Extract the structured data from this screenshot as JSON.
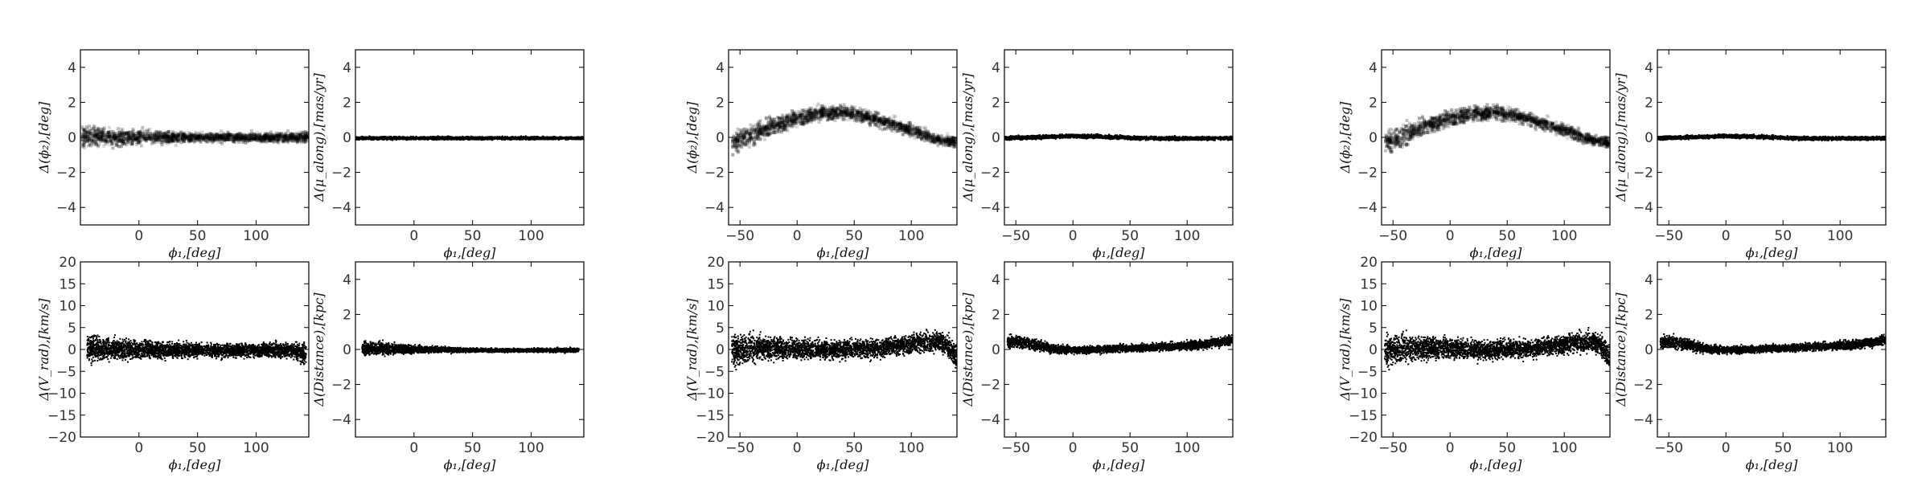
{
  "chart_data": [
    {
      "type": "heatmap",
      "column": 1,
      "row": 1,
      "xlabel": "ϕ₁,[deg]",
      "ylabel": "Δ(ϕ₂),[deg]",
      "xlim": [
        -50,
        145
      ],
      "ylim": [
        -5,
        5
      ],
      "xticks": [
        0,
        50,
        100
      ],
      "yticks": [
        -4,
        -2,
        0,
        2,
        4
      ],
      "band": {
        "x": [
          -50,
          -25,
          0,
          25,
          50,
          75,
          100,
          125,
          145
        ],
        "center": [
          0.1,
          0.0,
          0.0,
          0.0,
          0.0,
          0.0,
          0.0,
          0.0,
          0.0
        ],
        "spread": [
          0.6,
          0.5,
          0.4,
          0.3,
          0.25,
          0.25,
          0.25,
          0.25,
          0.3
        ]
      }
    },
    {
      "type": "scatter",
      "column": 1,
      "row": 1,
      "xlabel": "ϕ₁,[deg]",
      "ylabel": "Δ(μ_along),[mas/yr]",
      "xlim": [
        -50,
        145
      ],
      "ylim": [
        -5,
        5
      ],
      "xticks": [
        0,
        50,
        100
      ],
      "yticks": [
        -4,
        -2,
        0,
        2,
        4
      ],
      "band": {
        "x": [
          -50,
          0,
          50,
          100,
          145
        ],
        "center": [
          0.0,
          0.0,
          0.0,
          0.0,
          0.0
        ],
        "spread": [
          0.08,
          0.08,
          0.08,
          0.08,
          0.08
        ]
      }
    },
    {
      "type": "scatter",
      "column": 1,
      "row": 2,
      "xlabel": "ϕ₁,[deg]",
      "ylabel": "Δ(V_rad),[km/s]",
      "xlim": [
        -50,
        145
      ],
      "ylim": [
        -20,
        20
      ],
      "xticks": [
        0,
        50,
        100
      ],
      "yticks": [
        -20,
        -15,
        -10,
        -5,
        0,
        5,
        10,
        15,
        20
      ],
      "band": {
        "x": [
          -45,
          -25,
          0,
          50,
          100,
          130,
          142
        ],
        "center": [
          0.5,
          0.3,
          0.2,
          0.0,
          0.0,
          0.0,
          -1.0
        ],
        "spread": [
          3.0,
          2.5,
          2.0,
          1.5,
          1.5,
          1.8,
          2.5
        ]
      }
    },
    {
      "type": "scatter",
      "column": 1,
      "row": 2,
      "xlabel": "ϕ₁,[deg]",
      "ylabel": "Δ(Distance),[kpc]",
      "xlim": [
        -50,
        145
      ],
      "ylim": [
        -5,
        5
      ],
      "xticks": [
        0,
        50,
        100
      ],
      "yticks": [
        -4,
        -2,
        0,
        2,
        4
      ],
      "band": {
        "x": [
          -45,
          -25,
          0,
          50,
          100,
          140
        ],
        "center": [
          0.1,
          0.1,
          0.05,
          0.0,
          0.0,
          0.0
        ],
        "spread": [
          0.35,
          0.35,
          0.2,
          0.1,
          0.1,
          0.12
        ]
      }
    },
    {
      "type": "heatmap",
      "column": 2,
      "row": 1,
      "xlabel": "ϕ₁,[deg]",
      "ylabel": "Δ(ϕ₂),[deg]",
      "xlim": [
        -60,
        140
      ],
      "ylim": [
        -5,
        5
      ],
      "xticks": [
        -50,
        0,
        50,
        100
      ],
      "yticks": [
        -4,
        -2,
        0,
        2,
        4
      ],
      "band": {
        "x": [
          -58,
          -40,
          -20,
          0,
          20,
          40,
          60,
          80,
          100,
          120,
          138
        ],
        "center": [
          -0.4,
          0.2,
          0.7,
          1.1,
          1.4,
          1.4,
          1.2,
          0.8,
          0.4,
          -0.1,
          -0.3
        ],
        "spread": [
          0.6,
          0.55,
          0.5,
          0.45,
          0.4,
          0.4,
          0.35,
          0.35,
          0.35,
          0.3,
          0.3
        ]
      }
    },
    {
      "type": "scatter",
      "column": 2,
      "row": 1,
      "xlabel": "ϕ₁,[deg]",
      "ylabel": "Δ(μ_along),[mas/yr]",
      "xlim": [
        -60,
        140
      ],
      "ylim": [
        -5,
        5
      ],
      "xticks": [
        -50,
        0,
        50,
        100
      ],
      "yticks": [
        -4,
        -2,
        0,
        2,
        4
      ],
      "band": {
        "x": [
          -60,
          -20,
          0,
          20,
          60,
          100,
          140
        ],
        "center": [
          0.0,
          0.08,
          0.12,
          0.1,
          0.0,
          -0.02,
          0.0
        ],
        "spread": [
          0.1,
          0.1,
          0.1,
          0.1,
          0.1,
          0.1,
          0.1
        ]
      }
    },
    {
      "type": "scatter",
      "column": 2,
      "row": 2,
      "xlabel": "ϕ₁,[deg]",
      "ylabel": "Δ(V_rad),[km/s]",
      "xlim": [
        -60,
        140
      ],
      "ylim": [
        -20,
        20
      ],
      "xticks": [
        -50,
        0,
        50,
        100
      ],
      "yticks": [
        -20,
        -15,
        -10,
        -5,
        0,
        5,
        10,
        15,
        20
      ],
      "band": {
        "x": [
          -58,
          -40,
          -10,
          30,
          70,
          100,
          125,
          135,
          140
        ],
        "center": [
          0.0,
          0.5,
          0.5,
          0.0,
          0.5,
          1.5,
          2.0,
          0.0,
          -2.5
        ],
        "spread": [
          3.5,
          3.0,
          2.2,
          2.0,
          2.0,
          2.2,
          2.2,
          2.5,
          2.5
        ]
      }
    },
    {
      "type": "scatter",
      "column": 2,
      "row": 2,
      "xlabel": "ϕ₁,[deg]",
      "ylabel": "Δ(Distance),[kpc]",
      "xlim": [
        -60,
        140
      ],
      "ylim": [
        -5,
        5
      ],
      "xticks": [
        -50,
        0,
        50,
        100
      ],
      "yticks": [
        -4,
        -2,
        0,
        2,
        4
      ],
      "band": {
        "x": [
          -58,
          -40,
          -20,
          0,
          40,
          80,
          110,
          130,
          140
        ],
        "center": [
          0.5,
          0.4,
          0.1,
          0.0,
          0.1,
          0.2,
          0.3,
          0.5,
          0.6
        ],
        "spread": [
          0.35,
          0.35,
          0.25,
          0.2,
          0.2,
          0.2,
          0.25,
          0.25,
          0.3
        ]
      }
    },
    {
      "type": "heatmap",
      "column": 3,
      "row": 1,
      "xlabel": "ϕ₁,[deg]",
      "ylabel": "Δ(ϕ₂),[deg]",
      "xlim": [
        -60,
        140
      ],
      "ylim": [
        -5,
        5
      ],
      "xticks": [
        -50,
        0,
        50,
        100
      ],
      "yticks": [
        -4,
        -2,
        0,
        2,
        4
      ],
      "band": {
        "x": [
          -58,
          -40,
          -20,
          0,
          20,
          40,
          60,
          80,
          100,
          120,
          138
        ],
        "center": [
          -0.4,
          0.2,
          0.7,
          1.1,
          1.4,
          1.4,
          1.2,
          0.8,
          0.4,
          -0.1,
          -0.3
        ],
        "spread": [
          0.6,
          0.55,
          0.5,
          0.45,
          0.4,
          0.4,
          0.35,
          0.35,
          0.35,
          0.3,
          0.3
        ]
      }
    },
    {
      "type": "scatter",
      "column": 3,
      "row": 1,
      "xlabel": "ϕ₁,[deg]",
      "ylabel": "Δ(μ_along),[mas/yr]",
      "xlim": [
        -60,
        140
      ],
      "ylim": [
        -5,
        5
      ],
      "xticks": [
        -50,
        0,
        50,
        100
      ],
      "yticks": [
        -4,
        -2,
        0,
        2,
        4
      ],
      "band": {
        "x": [
          -60,
          -20,
          0,
          20,
          60,
          100,
          140
        ],
        "center": [
          0.0,
          0.08,
          0.12,
          0.1,
          0.0,
          -0.02,
          0.0
        ],
        "spread": [
          0.1,
          0.1,
          0.1,
          0.1,
          0.1,
          0.1,
          0.1
        ]
      }
    },
    {
      "type": "scatter",
      "column": 3,
      "row": 2,
      "xlabel": "ϕ₁,[deg]",
      "ylabel": "Δ(V_rad),[km/s]",
      "xlim": [
        -60,
        140
      ],
      "ylim": [
        -20,
        20
      ],
      "xticks": [
        -50,
        0,
        50,
        100
      ],
      "yticks": [
        -20,
        -15,
        -10,
        -5,
        0,
        5,
        10,
        15,
        20
      ],
      "band": {
        "x": [
          -58,
          -40,
          -10,
          30,
          70,
          100,
          125,
          135,
          140
        ],
        "center": [
          0.0,
          0.5,
          0.5,
          0.0,
          0.5,
          1.5,
          2.0,
          0.0,
          -2.5
        ],
        "spread": [
          3.5,
          3.0,
          2.2,
          2.0,
          2.0,
          2.2,
          2.2,
          2.5,
          2.5
        ]
      }
    },
    {
      "type": "scatter",
      "column": 3,
      "row": 2,
      "xlabel": "ϕ₁,[deg]",
      "ylabel": "Δ(Distance),[kpc]",
      "xlim": [
        -60,
        140
      ],
      "ylim": [
        -5,
        5
      ],
      "xticks": [
        -50,
        0,
        50,
        100
      ],
      "yticks": [
        -4,
        -2,
        0,
        2,
        4
      ],
      "band": {
        "x": [
          -58,
          -40,
          -20,
          0,
          40,
          80,
          110,
          130,
          140
        ],
        "center": [
          0.5,
          0.4,
          0.1,
          0.0,
          0.1,
          0.2,
          0.3,
          0.5,
          0.6
        ],
        "spread": [
          0.35,
          0.35,
          0.25,
          0.2,
          0.2,
          0.2,
          0.25,
          0.25,
          0.3
        ]
      }
    }
  ]
}
